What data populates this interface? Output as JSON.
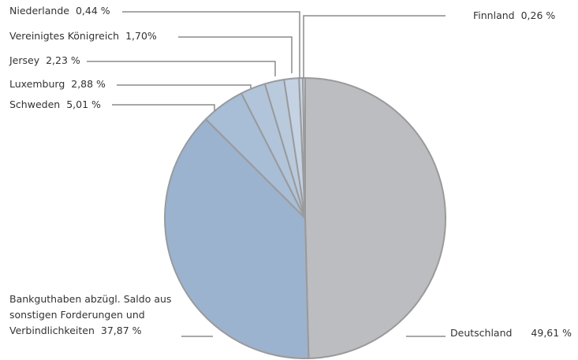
{
  "chart_data": {
    "type": "pie",
    "categories": [
      "Deutschland",
      "Bankguthaben abzügl. Saldo aus sonstigen Forderungen und Verbindlichkeiten",
      "Schweden",
      "Luxemburg",
      "Jersey",
      "Vereinigtes Königreich",
      "Niederlande",
      "Finnland"
    ],
    "values": [
      49.61,
      37.87,
      5.01,
      2.88,
      2.23,
      1.7,
      0.44,
      0.26
    ],
    "value_labels": [
      "49,61 %",
      "37,87 %",
      "5,01 %",
      "2,88 %",
      "2,23 %",
      "1,70%",
      "0,44 %",
      "0,26 %"
    ],
    "colors": [
      "#bcbdc1",
      "#9bb3cf",
      "#a8bdd6",
      "#b1c4da",
      "#bacadd",
      "#c4d2e4",
      "#cdd9e8",
      "#d6e1ed"
    ]
  }
}
